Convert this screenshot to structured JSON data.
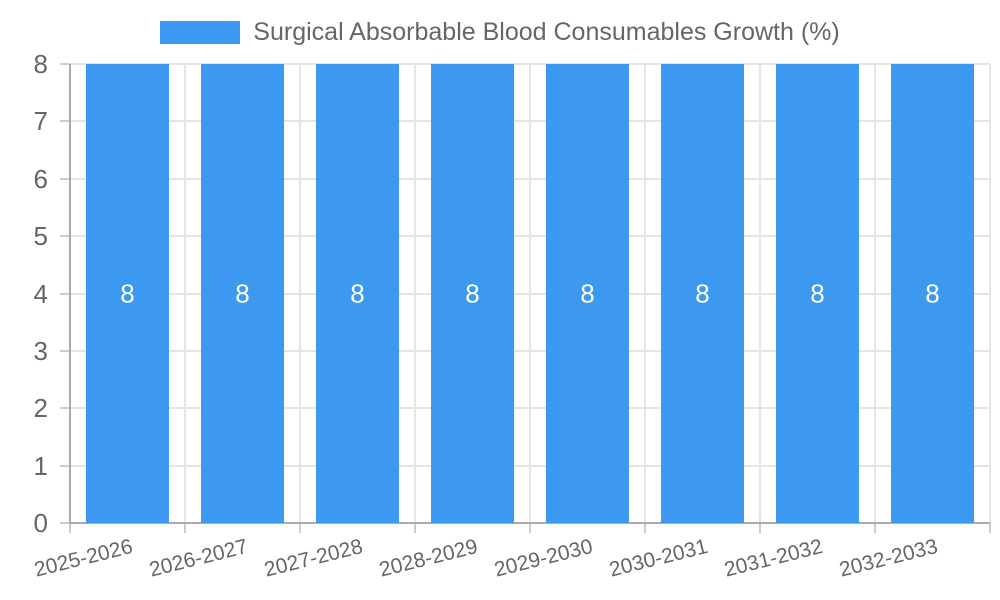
{
  "chart_data": {
    "type": "bar",
    "title": "Surgical Absorbable Blood Consumables Growth (%)",
    "legend_position": "top",
    "categories": [
      "2025-2026",
      "2026-2027",
      "2027-2028",
      "2028-2029",
      "2029-2030",
      "2030-2031",
      "2031-2032",
      "2032-2033"
    ],
    "values": [
      8,
      8,
      8,
      8,
      8,
      8,
      8,
      8
    ],
    "bar_labels": [
      "8",
      "8",
      "8",
      "8",
      "8",
      "8",
      "8",
      "8"
    ],
    "xlabel": "",
    "ylabel": "",
    "ylim": [
      0,
      8
    ],
    "yticks": [
      0,
      1,
      2,
      3,
      4,
      5,
      6,
      7,
      8
    ],
    "grid": true,
    "x_label_rotation_deg": -14,
    "colors": {
      "bar": "#3D99EF",
      "bar_label": "#FFFFFF",
      "axis_text": "#666666",
      "axis_line": "#ABABAB",
      "gridline": "#E5E5E5",
      "tick": "#CDCDCD",
      "background": "#FFFFFF"
    }
  }
}
